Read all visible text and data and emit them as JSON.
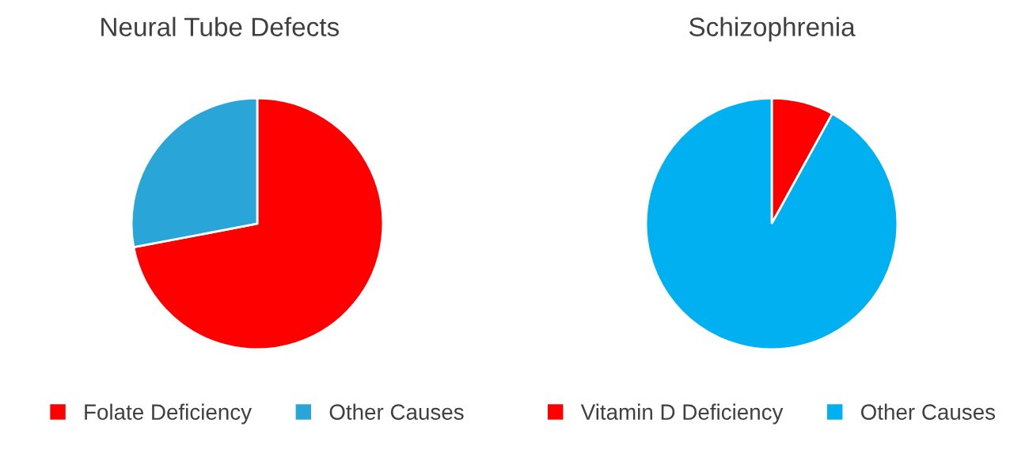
{
  "chart_data": [
    {
      "type": "pie",
      "title": "Neural Tube Defects",
      "categories": [
        "Folate Deficiency",
        "Other Causes"
      ],
      "values": [
        72,
        28
      ],
      "colors": [
        "#ff0000",
        "#29a5d8"
      ],
      "legend": "bottom"
    },
    {
      "type": "pie",
      "title": "Schizophrenia",
      "categories": [
        "Vitamin D Deficiency",
        "Other Causes"
      ],
      "values": [
        8,
        92
      ],
      "colors": [
        "#ff0000",
        "#00b0f0"
      ],
      "legend": "bottom"
    }
  ]
}
